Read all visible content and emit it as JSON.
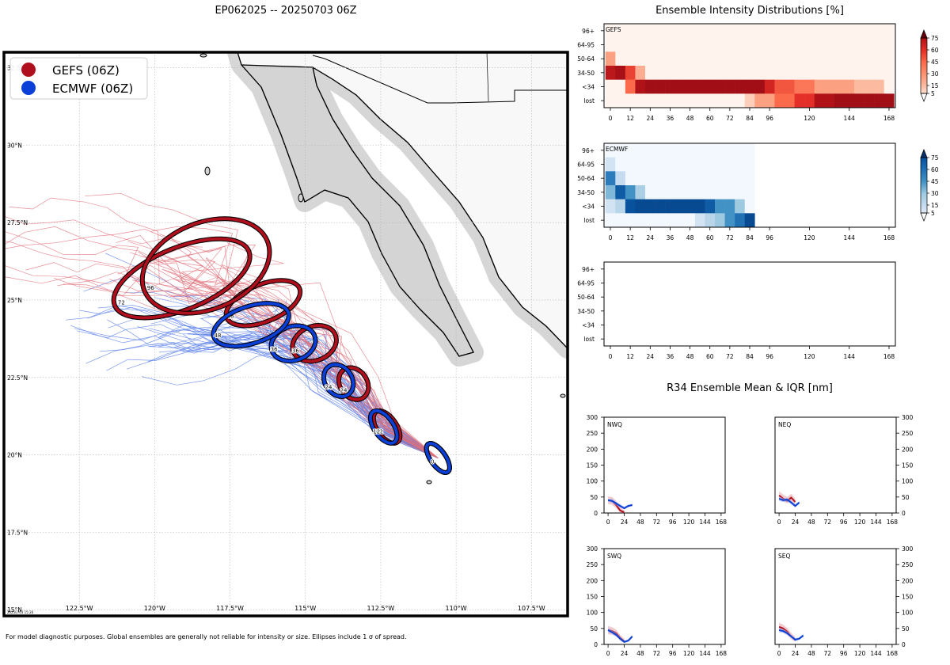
{
  "figure": {
    "title": "EP062025 -- 20250703 06Z",
    "footer": "For model diagnostic purposes. Global ensembles are generally not reliable for intensity or size. Ellipses include 1 σ of spread.",
    "stamp": "20250703 15:26"
  },
  "colors": {
    "gefs": "#b0101e",
    "ecmwf": "#0a3fd8",
    "land": "#d0d0d0",
    "ocean": "#ffffff",
    "gefs_light": "#e0707a",
    "ecmwf_light": "#5a7fe8"
  },
  "chart_data": [
    {
      "type": "scatter",
      "name": "track-map",
      "legend": [
        {
          "name": "GEFS (06Z)",
          "color": "#b0101e"
        },
        {
          "name": "ECMWF (06Z)",
          "color": "#0a3fd8"
        }
      ],
      "legend_position": "top-left",
      "xlim": [
        -125,
        -106.3
      ],
      "ylim": [
        14.8,
        33
      ],
      "xticks": [
        "122.5°W",
        "120°W",
        "117.5°W",
        "115°W",
        "112.5°W",
        "110°W",
        "107.5°W"
      ],
      "yticks": [
        "15°N",
        "17.5°N",
        "20°N",
        "22.5°N",
        "25°N",
        "27.5°N",
        "30°N",
        "32.5°N"
      ],
      "grid": true,
      "gefs_mean_positions": [
        {
          "hour": 0,
          "lon": -110.6,
          "lat": 19.9
        },
        {
          "hour": 12,
          "lon": -112.3,
          "lat": 20.9
        },
        {
          "hour": 24,
          "lon": -113.4,
          "lat": 22.3
        },
        {
          "hour": 36,
          "lon": -114.7,
          "lat": 23.6
        },
        {
          "hour": 48,
          "lon": -116.4,
          "lat": 24.9
        },
        {
          "hour": 72,
          "lon": -119.1,
          "lat": 25.7
        },
        {
          "hour": 96,
          "lon": -118.3,
          "lat": 26.1
        }
      ],
      "ecmwf_mean_positions": [
        {
          "hour": 0,
          "lon": -110.6,
          "lat": 19.9
        },
        {
          "hour": 12,
          "lon": -112.4,
          "lat": 20.9
        },
        {
          "hour": 24,
          "lon": -113.9,
          "lat": 22.4
        },
        {
          "hour": 36,
          "lon": -115.4,
          "lat": 23.6
        },
        {
          "hour": 48,
          "lon": -116.8,
          "lat": 24.2
        }
      ],
      "ellipse_labels": [
        "0",
        "12",
        "24",
        "36",
        "48",
        "72",
        "96"
      ]
    },
    {
      "type": "heatmap",
      "name": "GEFS",
      "panel_label": "GEFS",
      "colormap": "Reds",
      "row_labels": [
        "96+",
        "64-95",
        "50-64",
        "34-50",
        "<34",
        "lost"
      ],
      "x_ticks": [
        "0",
        "12",
        "24",
        "36",
        "48",
        "60",
        "72",
        "84",
        "96",
        "120",
        "144",
        "168"
      ],
      "x_hours": [
        0,
        6,
        12,
        18,
        24,
        30,
        36,
        42,
        48,
        54,
        60,
        66,
        72,
        78,
        84,
        90,
        96,
        102,
        108,
        114,
        120,
        126,
        132,
        138,
        144,
        150,
        156,
        162,
        168
      ],
      "values": [
        [
          0,
          0,
          0,
          0,
          0,
          0,
          0,
          0,
          0,
          0,
          0,
          0,
          0,
          0,
          0,
          0,
          0,
          0,
          0,
          0,
          0,
          0,
          0,
          0,
          0,
          0,
          0,
          0,
          0
        ],
        [
          0,
          0,
          0,
          0,
          0,
          0,
          0,
          0,
          0,
          0,
          0,
          0,
          0,
          0,
          0,
          0,
          0,
          0,
          0,
          0,
          0,
          0,
          0,
          0,
          0,
          0,
          0,
          0,
          0
        ],
        [
          25,
          0,
          0,
          0,
          0,
          0,
          0,
          0,
          0,
          0,
          0,
          0,
          0,
          0,
          0,
          0,
          0,
          0,
          0,
          0,
          0,
          0,
          0,
          0,
          0,
          0,
          0,
          0,
          0
        ],
        [
          72,
          78,
          55,
          20,
          0,
          0,
          0,
          0,
          0,
          0,
          0,
          0,
          0,
          0,
          0,
          0,
          0,
          0,
          0,
          0,
          0,
          0,
          0,
          0,
          0,
          0,
          0,
          0,
          0
        ],
        [
          0,
          0,
          45,
          75,
          80,
          80,
          80,
          80,
          80,
          80,
          80,
          80,
          80,
          80,
          80,
          80,
          65,
          50,
          50,
          40,
          40,
          25,
          25,
          25,
          25,
          15,
          15,
          15,
          0
        ],
        [
          0,
          0,
          0,
          0,
          0,
          0,
          0,
          0,
          0,
          0,
          0,
          0,
          0,
          0,
          10,
          25,
          25,
          45,
          45,
          60,
          60,
          75,
          75,
          80,
          80,
          80,
          80,
          80,
          80
        ]
      ],
      "colorbar_ticks": [
        "5",
        "15",
        "30",
        "45",
        "60",
        "75"
      ]
    },
    {
      "type": "heatmap",
      "name": "ECMWF",
      "panel_label": "ECMWF",
      "colormap": "Blues",
      "row_labels": [
        "96+",
        "64-95",
        "50-64",
        "34-50",
        "<34",
        "lost"
      ],
      "x_ticks": [
        "0",
        "12",
        "24",
        "36",
        "48",
        "60",
        "72",
        "84",
        "96",
        "120",
        "144",
        "168"
      ],
      "x_hours": [
        0,
        6,
        12,
        18,
        24,
        30,
        36,
        42,
        48,
        54,
        60,
        66,
        72,
        78,
        84,
        90,
        96,
        102,
        108,
        114,
        120,
        126,
        132,
        138,
        144,
        150,
        156,
        162,
        168
      ],
      "values": [
        [
          0,
          0,
          0,
          0,
          0,
          0,
          0,
          0,
          0,
          0,
          0,
          0,
          0,
          0,
          0,
          null,
          null,
          null,
          null,
          null,
          null,
          null,
          null,
          null,
          null,
          null,
          null,
          null,
          null
        ],
        [
          10,
          0,
          0,
          0,
          0,
          0,
          0,
          0,
          0,
          0,
          0,
          0,
          0,
          0,
          0,
          null,
          null,
          null,
          null,
          null,
          null,
          null,
          null,
          null,
          null,
          null,
          null,
          null,
          null
        ],
        [
          55,
          15,
          0,
          0,
          0,
          0,
          0,
          0,
          0,
          0,
          0,
          0,
          0,
          0,
          0,
          null,
          null,
          null,
          null,
          null,
          null,
          null,
          null,
          null,
          null,
          null,
          null,
          null,
          null
        ],
        [
          35,
          70,
          45,
          25,
          0,
          0,
          0,
          0,
          0,
          0,
          0,
          0,
          0,
          0,
          0,
          null,
          null,
          null,
          null,
          null,
          null,
          null,
          null,
          null,
          null,
          null,
          null,
          null,
          null
        ],
        [
          10,
          20,
          75,
          80,
          80,
          80,
          80,
          80,
          80,
          80,
          70,
          45,
          45,
          30,
          0,
          null,
          null,
          null,
          null,
          null,
          null,
          null,
          null,
          null,
          null,
          null,
          null,
          null,
          null
        ],
        [
          0,
          0,
          0,
          0,
          0,
          0,
          0,
          0,
          0,
          10,
          20,
          30,
          45,
          60,
          80,
          null,
          null,
          null,
          null,
          null,
          null,
          null,
          null,
          null,
          null,
          null,
          null,
          null,
          null
        ]
      ],
      "colorbar_ticks": [
        "5",
        "15",
        "30",
        "45",
        "60",
        "75"
      ]
    },
    {
      "type": "heatmap",
      "name": "third-model-empty",
      "panel_label": "",
      "row_labels": [
        "96+",
        "64-95",
        "50-64",
        "34-50",
        "<34",
        "lost"
      ],
      "x_ticks": [
        "0",
        "12",
        "24",
        "36",
        "48",
        "60",
        "72",
        "84",
        "96",
        "120",
        "144",
        "168"
      ],
      "values": []
    },
    {
      "type": "line",
      "name": "R34 Ensemble Mean & IQR [nm]",
      "title": "R34 Ensemble Mean & IQR [nm]",
      "xlim": [
        -6,
        174
      ],
      "ylim": [
        0,
        300
      ],
      "xticks": [
        "0",
        "24",
        "48",
        "72",
        "96",
        "120",
        "144",
        "168"
      ],
      "yticks": [
        "0",
        "50",
        "100",
        "150",
        "200",
        "250",
        "300"
      ],
      "quadrants": [
        {
          "label": "NWQ",
          "gefs": {
            "x": [
              0,
              6,
              12,
              18,
              24
            ],
            "y": [
              40,
              38,
              25,
              8,
              2
            ],
            "iqr_low": [
              28,
              26,
              15,
              2,
              0
            ],
            "iqr_high": [
              52,
              50,
              38,
              18,
              8
            ]
          },
          "ecmwf": {
            "x": [
              0,
              6,
              12,
              18,
              24,
              30,
              36
            ],
            "y": [
              40,
              38,
              30,
              22,
              15,
              22,
              25
            ],
            "iqr_low": [
              35,
              32,
              24,
              17,
              11,
              18,
              21
            ],
            "iqr_high": [
              45,
              44,
              36,
              28,
              20,
              26,
              29
            ]
          }
        },
        {
          "label": "NEQ",
          "gefs": {
            "x": [
              0,
              6,
              12,
              18,
              24
            ],
            "y": [
              55,
              45,
              38,
              48,
              35
            ],
            "iqr_low": [
              42,
              36,
              30,
              38,
              25
            ],
            "iqr_high": [
              68,
              58,
              50,
              60,
              45
            ]
          },
          "ecmwf": {
            "x": [
              0,
              6,
              12,
              18,
              24,
              30
            ],
            "y": [
              45,
              40,
              42,
              33,
              22,
              33
            ],
            "iqr_low": [
              38,
              34,
              36,
              27,
              17,
              28
            ],
            "iqr_high": [
              52,
              46,
              48,
              39,
              27,
              38
            ]
          }
        },
        {
          "label": "SWQ",
          "gefs": {
            "x": [
              0,
              6,
              12,
              18,
              24
            ],
            "y": [
              45,
              42,
              35,
              20,
              10
            ],
            "iqr_low": [
              32,
              30,
              25,
              12,
              4
            ],
            "iqr_high": [
              58,
              54,
              46,
              30,
              18
            ]
          },
          "ecmwf": {
            "x": [
              0,
              6,
              12,
              18,
              24,
              30,
              36
            ],
            "y": [
              45,
              38,
              30,
              18,
              8,
              12,
              25
            ],
            "iqr_low": [
              38,
              32,
              24,
              13,
              4,
              8,
              20
            ],
            "iqr_high": [
              52,
              44,
              36,
              23,
              12,
              16,
              30
            ]
          }
        },
        {
          "label": "SEQ",
          "gefs": {
            "x": [
              0,
              6,
              12,
              18,
              24
            ],
            "y": [
              55,
              50,
              40,
              25,
              15
            ],
            "iqr_low": [
              42,
              38,
              30,
              16,
              8
            ],
            "iqr_high": [
              68,
              62,
              52,
              36,
              24
            ]
          },
          "ecmwf": {
            "x": [
              0,
              6,
              12,
              18,
              24,
              30,
              36
            ],
            "y": [
              45,
              42,
              35,
              25,
              15,
              18,
              28
            ],
            "iqr_low": [
              38,
              36,
              29,
              20,
              10,
              14,
              23
            ],
            "iqr_high": [
              52,
              48,
              41,
              30,
              20,
              22,
              33
            ]
          }
        }
      ]
    }
  ]
}
